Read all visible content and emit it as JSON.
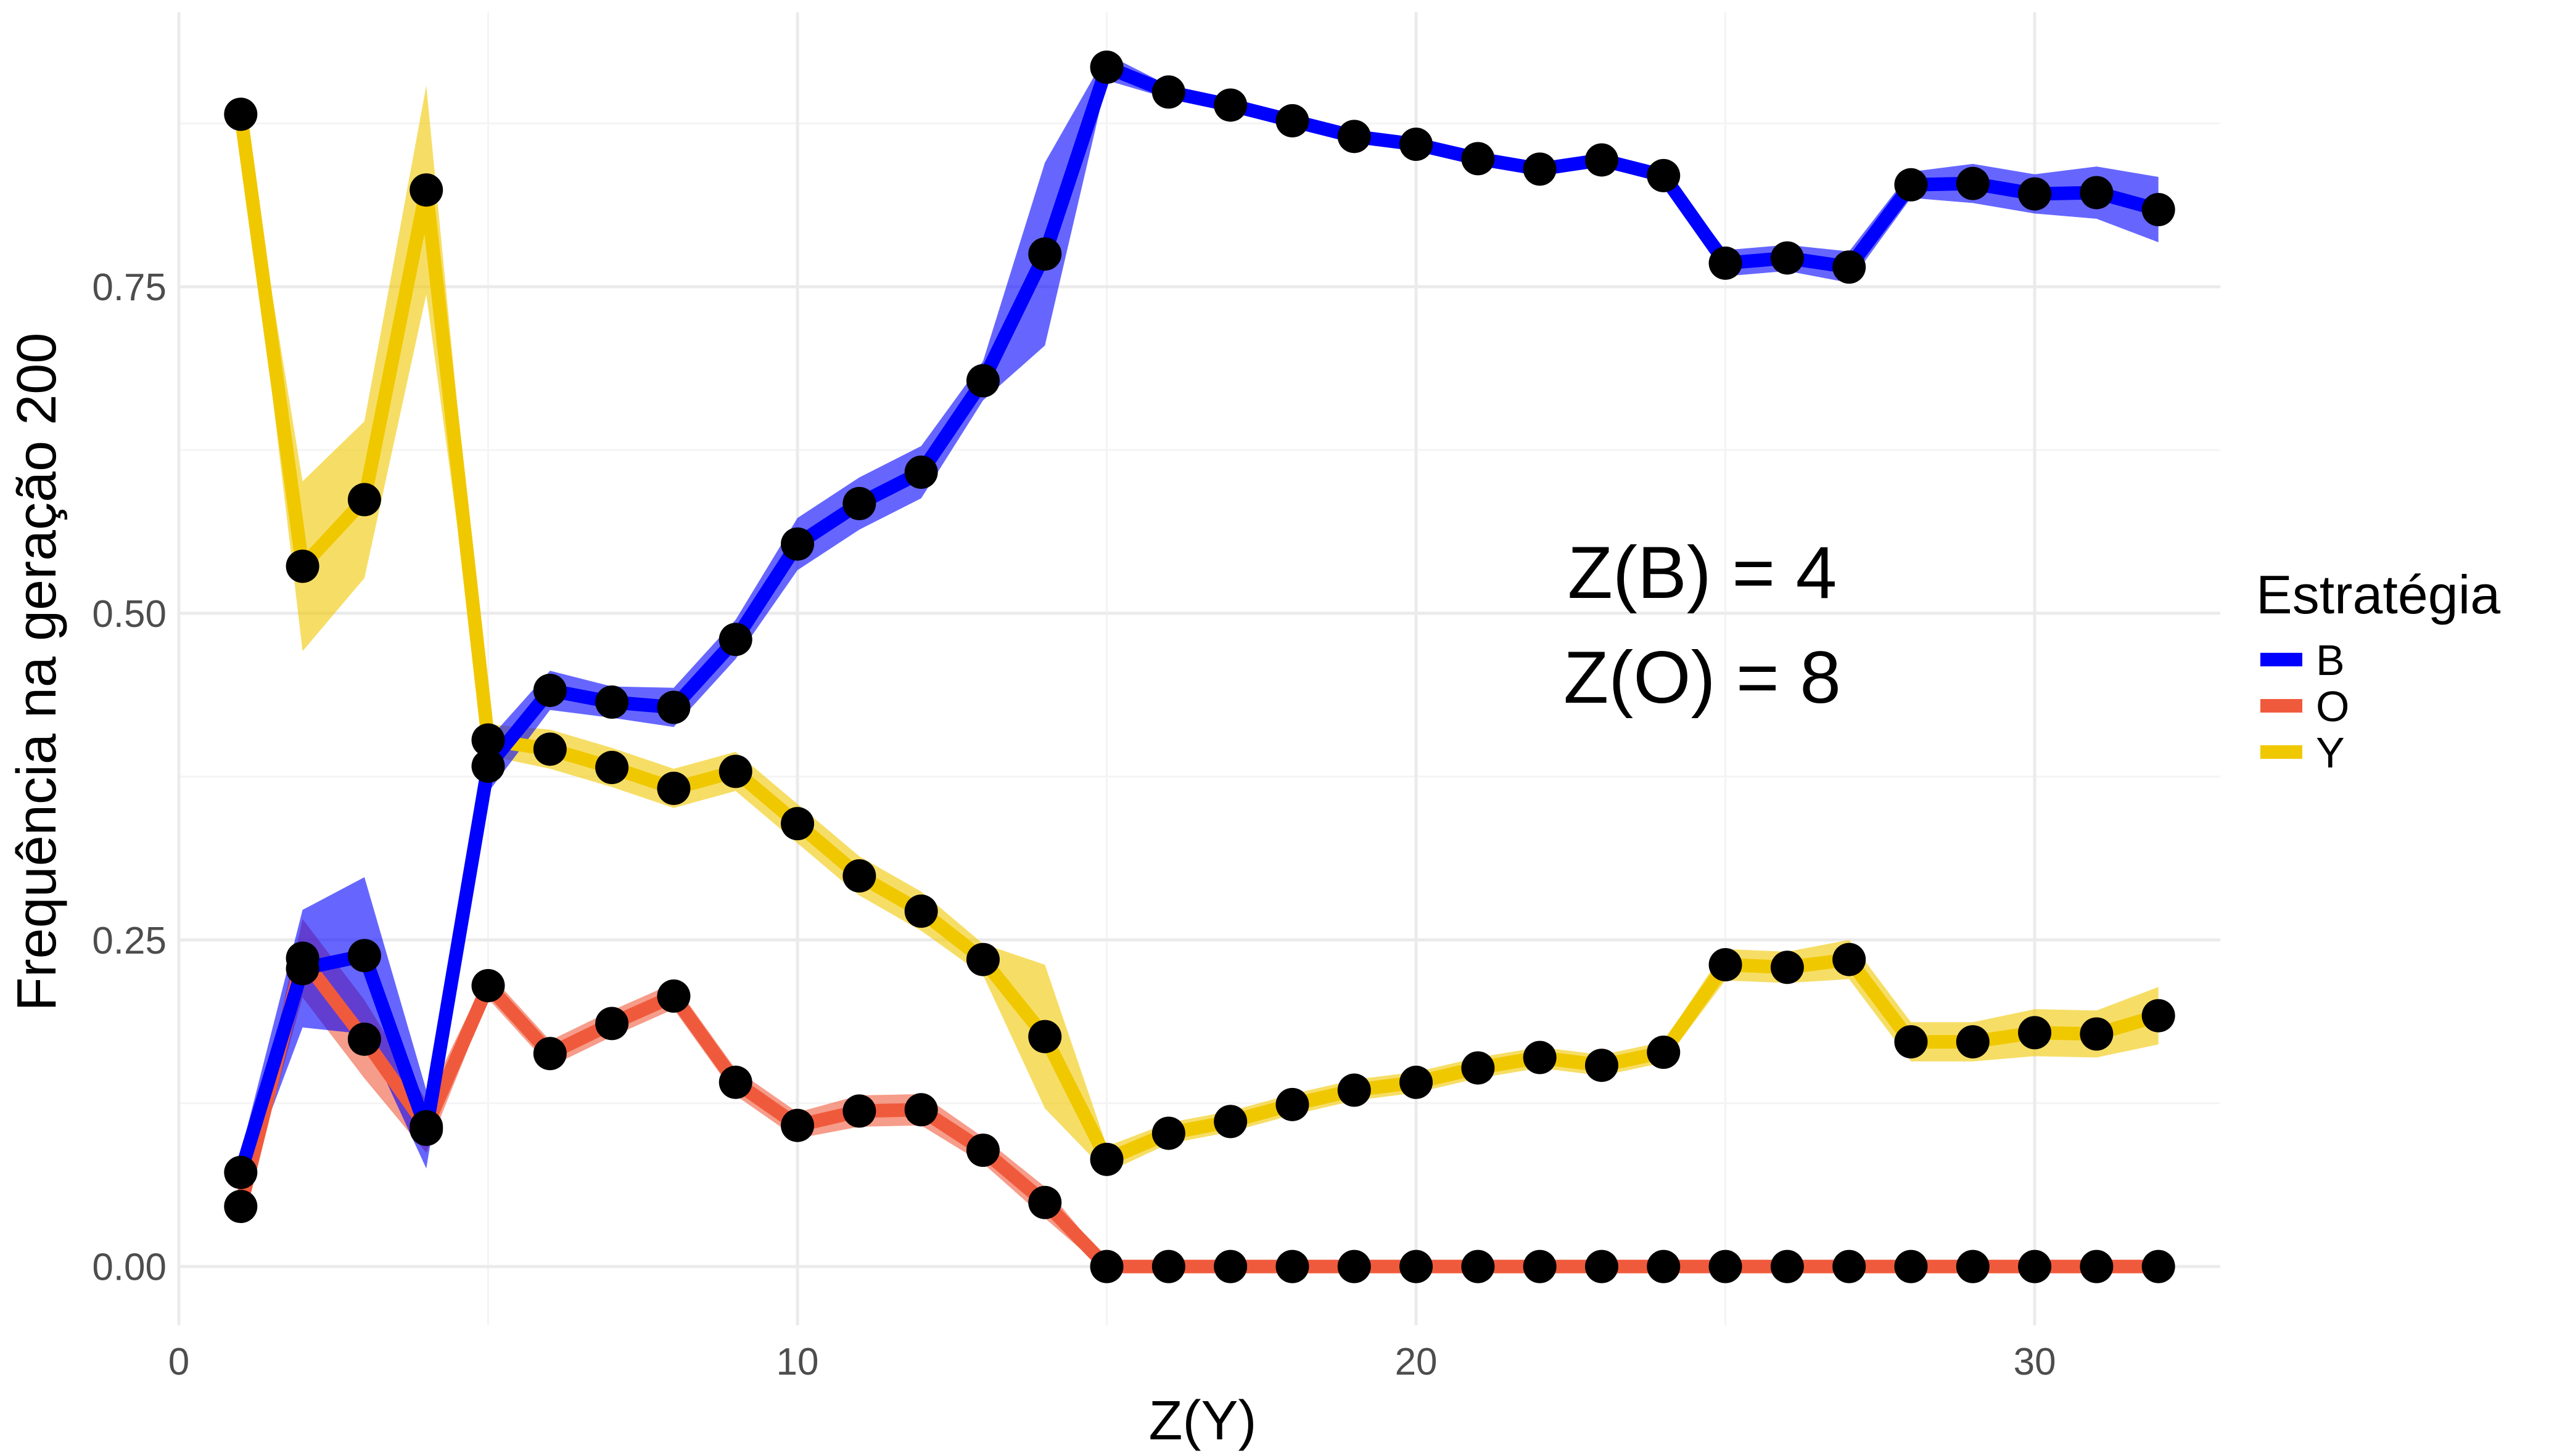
{
  "chart_data": {
    "type": "line",
    "title": "",
    "xlabel": "Z(Y)",
    "ylabel": "Frequência na geração 200",
    "xlim": [
      0,
      33
    ],
    "ylim": [
      0,
      0.95
    ],
    "x_ticks": [
      0,
      10,
      20,
      30
    ],
    "x_tick_labels": [
      "0",
      "10",
      "20",
      "30"
    ],
    "y_ticks": [
      0,
      0.25,
      0.5,
      0.75
    ],
    "y_tick_labels": [
      "0.00",
      "0.25",
      "0.50",
      "0.75"
    ],
    "grid": true,
    "legend": {
      "title": "Estratégia",
      "position": "right"
    },
    "annotations": [
      "Z(B) = 4",
      "Z(O) = 8"
    ],
    "x": [
      1,
      2,
      3,
      4,
      5,
      6,
      7,
      8,
      9,
      10,
      11,
      12,
      13,
      14,
      15,
      16,
      17,
      18,
      19,
      20,
      21,
      22,
      23,
      24,
      25,
      26,
      27,
      28,
      29,
      30,
      31,
      32
    ],
    "series": [
      {
        "name": "B",
        "color": "#0000ff",
        "values": [
          0.072,
          0.228,
          0.238,
          0.105,
          0.383,
          0.441,
          0.432,
          0.428,
          0.48,
          0.553,
          0.584,
          0.608,
          0.678,
          0.775,
          0.918,
          0.899,
          0.889,
          0.877,
          0.865,
          0.859,
          0.848,
          0.84,
          0.847,
          0.835,
          0.768,
          0.772,
          0.765,
          0.828,
          0.829,
          0.821,
          0.822,
          0.809
        ],
        "band": [
          0.015,
          0.045,
          0.06,
          0.03,
          0.02,
          0.015,
          0.012,
          0.015,
          0.015,
          0.02,
          0.02,
          0.02,
          0.015,
          0.07,
          0.01,
          0.005,
          0.005,
          0.005,
          0.005,
          0.005,
          0.005,
          0.005,
          0.005,
          0.005,
          0.01,
          0.01,
          0.012,
          0.01,
          0.015,
          0.015,
          0.02,
          0.025
        ]
      },
      {
        "name": "O",
        "color": "#f05a3c",
        "values": [
          0.046,
          0.236,
          0.174,
          0.107,
          0.215,
          0.163,
          0.186,
          0.207,
          0.141,
          0.108,
          0.119,
          0.12,
          0.089,
          0.049,
          0.0,
          0.0,
          0.0,
          0.0,
          0.0,
          0.0,
          0.0,
          0.0,
          0.0,
          0.0,
          0.0,
          0.0,
          0.0,
          0.0,
          0.0,
          0.0,
          0.0,
          0.0
        ],
        "band": [
          0.01,
          0.03,
          0.03,
          0.02,
          0.01,
          0.01,
          0.01,
          0.01,
          0.01,
          0.01,
          0.012,
          0.012,
          0.01,
          0.012,
          0.004,
          0.004,
          0.004,
          0.004,
          0.004,
          0.004,
          0.004,
          0.004,
          0.004,
          0.004,
          0.004,
          0.004,
          0.004,
          0.004,
          0.004,
          0.004,
          0.004,
          0.004
        ]
      },
      {
        "name": "Y",
        "color": "#f0c800",
        "values": [
          0.882,
          0.536,
          0.587,
          0.824,
          0.403,
          0.396,
          0.382,
          0.366,
          0.379,
          0.339,
          0.299,
          0.272,
          0.235,
          0.176,
          0.082,
          0.102,
          0.111,
          0.124,
          0.135,
          0.141,
          0.152,
          0.16,
          0.154,
          0.164,
          0.231,
          0.229,
          0.235,
          0.172,
          0.172,
          0.179,
          0.178,
          0.192
        ],
        "band": [
          0.01,
          0.065,
          0.06,
          0.08,
          0.012,
          0.015,
          0.015,
          0.015,
          0.015,
          0.015,
          0.015,
          0.015,
          0.012,
          0.055,
          0.01,
          0.008,
          0.008,
          0.008,
          0.008,
          0.008,
          0.008,
          0.008,
          0.008,
          0.008,
          0.012,
          0.012,
          0.015,
          0.015,
          0.015,
          0.018,
          0.018,
          0.022
        ]
      }
    ]
  }
}
